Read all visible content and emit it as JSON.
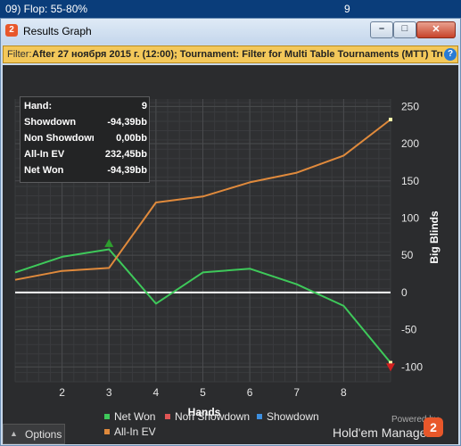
{
  "topbar": {
    "name": "09) Flop: 55-80%",
    "count": "9"
  },
  "window": {
    "title": "Results Graph",
    "app_icon": "2",
    "buttons": {
      "minimize_glyph": "–",
      "maximize_glyph": "□",
      "close_glyph": "✕"
    }
  },
  "filter": {
    "label": "Filter:",
    "text": "After 27 ноября 2015 г. (12:00); Tournament: Filter for Multi Table Tournaments (MTT) True",
    "help_glyph": "?"
  },
  "stats": [
    {
      "label": "Hand:",
      "value": "9"
    },
    {
      "label": "Showdown",
      "value": "-94,39bb"
    },
    {
      "label": "Non Showdown",
      "value": "0,00bb"
    },
    {
      "label": "All-In EV",
      "value": "232,45bb"
    },
    {
      "label": "Net Won",
      "value": "-94,39bb"
    }
  ],
  "legend": [
    {
      "label": "Net Won",
      "color": "#3ec95a"
    },
    {
      "label": "Non Showdown",
      "color": "#e05555"
    },
    {
      "label": "Showdown",
      "color": "#3d8fe0"
    },
    {
      "label": "All-In EV",
      "color": "#e08a3c"
    }
  ],
  "options_label": "Options",
  "powered_by": "Powered by",
  "brand": "Hold'em Manager",
  "brand_logo": "2",
  "chart_data": {
    "type": "line",
    "xlabel": "Hands",
    "ylabel": "Big Blinds",
    "xlim": [
      1,
      9
    ],
    "ylim": [
      -120,
      260
    ],
    "x_ticks": [
      2,
      3,
      4,
      5,
      6,
      7,
      8
    ],
    "y_ticks": [
      -100,
      -50,
      0,
      50,
      100,
      150,
      200,
      250
    ],
    "grid": true,
    "legend_position": "bottom",
    "x": [
      1,
      2,
      3,
      4,
      5,
      6,
      7,
      8,
      9
    ],
    "series": [
      {
        "name": "Net Won",
        "color": "#3ec95a",
        "values": [
          27,
          48,
          58,
          -15,
          27,
          32,
          11,
          -18,
          -94.39
        ]
      },
      {
        "name": "All-In EV",
        "color": "#e08a3c",
        "values": [
          17,
          29,
          33,
          121,
          129,
          148,
          161,
          184,
          232.45
        ]
      }
    ],
    "markers": [
      {
        "x": 3,
        "y": 66,
        "shape": "up-triangle",
        "color": "#2e9e2e"
      },
      {
        "x": 9,
        "y": -100,
        "shape": "down-triangle",
        "color": "#d02020"
      }
    ]
  }
}
